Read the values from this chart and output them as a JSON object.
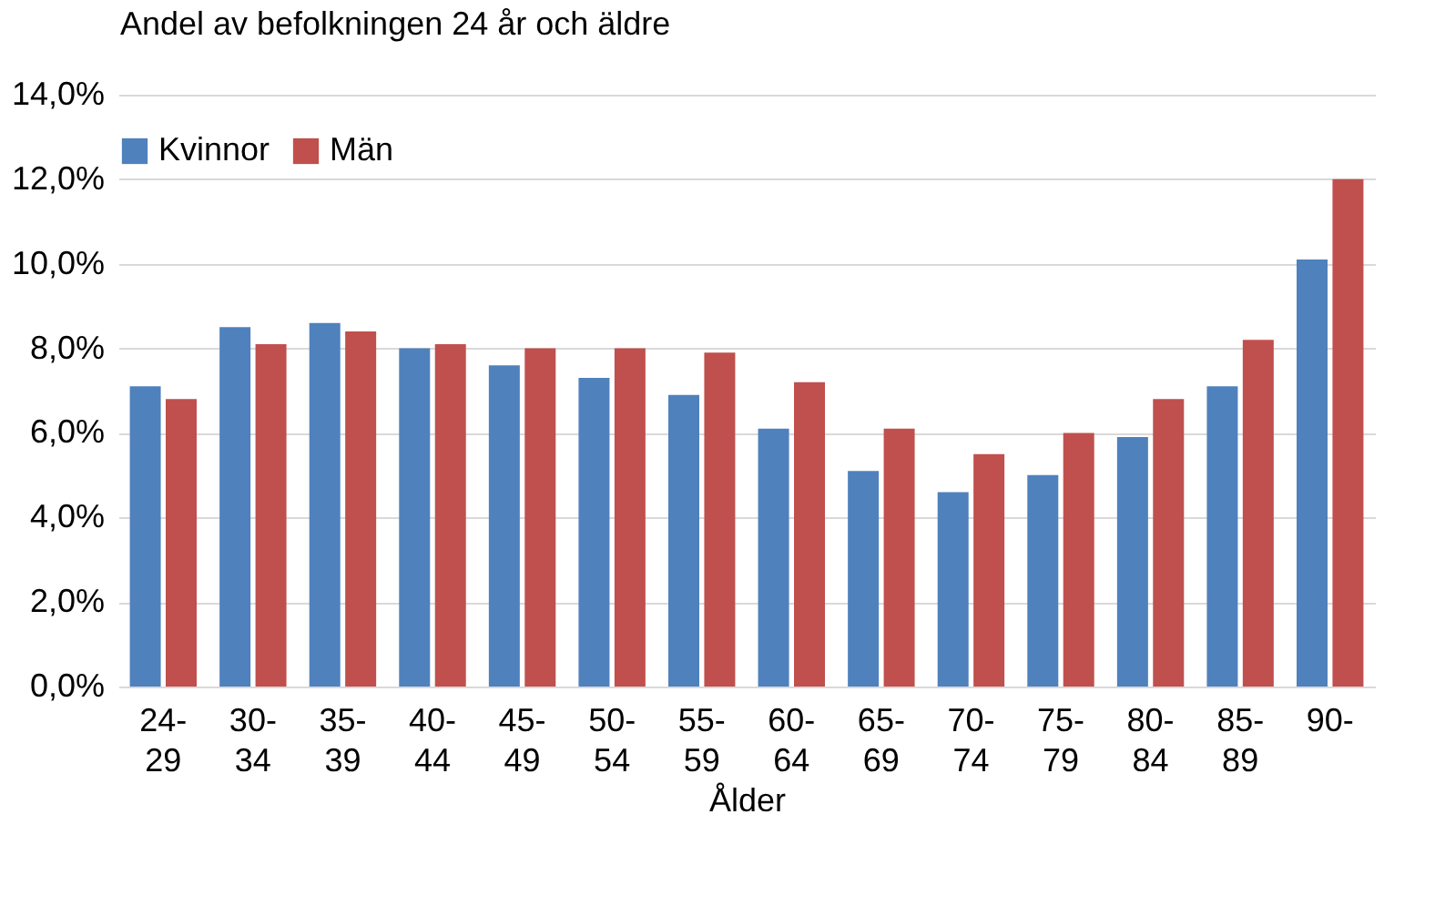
{
  "chart_data": {
    "type": "bar",
    "title": "Andel av befolkningen 24 år och äldre",
    "xlabel": "Ålder",
    "categories": [
      "24-29",
      "30-34",
      "35-39",
      "40-44",
      "45-49",
      "50-54",
      "55-59",
      "60-64",
      "65-69",
      "70-74",
      "75-79",
      "80-84",
      "85-89",
      "90-"
    ],
    "series": [
      {
        "name": "Kvinnor",
        "color": "#4f81bd",
        "values": [
          7.1,
          8.5,
          8.6,
          8.0,
          7.6,
          7.3,
          6.9,
          6.1,
          5.1,
          4.6,
          5.0,
          5.9,
          7.1,
          10.1
        ]
      },
      {
        "name": "Män",
        "color": "#c0504d",
        "values": [
          6.8,
          8.1,
          8.4,
          8.1,
          8.0,
          8.0,
          7.9,
          7.2,
          6.1,
          5.5,
          6.0,
          6.8,
          8.2,
          12.0
        ]
      }
    ],
    "ylim": [
      0,
      14
    ],
    "yticks": [
      {
        "value": 0,
        "label": "0,0%"
      },
      {
        "value": 2,
        "label": "2,0%"
      },
      {
        "value": 4,
        "label": "4,0%"
      },
      {
        "value": 6,
        "label": "6,0%"
      },
      {
        "value": 8,
        "label": "8,0%"
      },
      {
        "value": 10,
        "label": "10,0%"
      },
      {
        "value": 12,
        "label": "12,0%"
      },
      {
        "value": 14,
        "label": "14,0%"
      }
    ],
    "grid": "y",
    "legend": "top"
  }
}
